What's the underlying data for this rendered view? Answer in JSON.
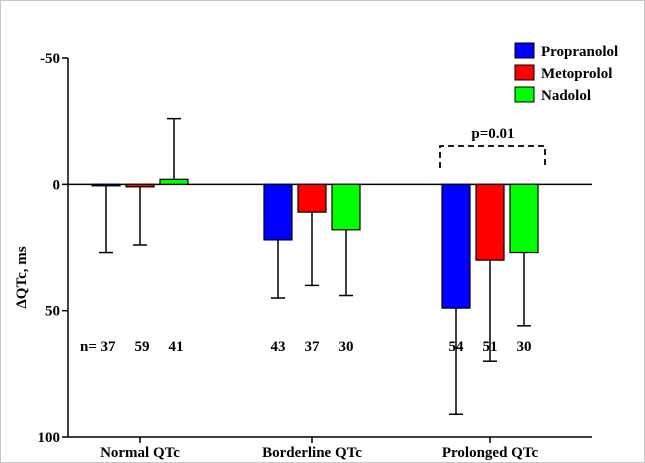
{
  "chart_data": {
    "type": "bar",
    "title": "",
    "xlabel": "",
    "ylabel": "ΔQTc, ms",
    "ylim": [
      -50,
      100
    ],
    "y_inverted": true,
    "yticks": [
      "-50",
      "0",
      "50",
      "100"
    ],
    "categories": [
      "Normal QTc",
      "Borderline QTc",
      "Prolonged QTc"
    ],
    "series": [
      {
        "name": "Propranolol",
        "color": "#0000ff",
        "values": [
          0,
          22,
          49
        ],
        "error": [
          27,
          23,
          42
        ]
      },
      {
        "name": "Metoprolol",
        "color": "#ff0000",
        "values": [
          1,
          11,
          30
        ],
        "error": [
          23,
          29,
          40
        ]
      },
      {
        "name": "Nadolol",
        "color": "#00ff00",
        "values": [
          -2,
          18,
          27
        ],
        "error": [
          24,
          26,
          29
        ]
      }
    ],
    "n_prefix": "n=",
    "n_values": [
      [
        "37",
        "59",
        "41"
      ],
      [
        "43",
        "37",
        "30"
      ],
      [
        "54",
        "51",
        "30"
      ]
    ],
    "n_row_y": 64,
    "legend_position": "top-right",
    "grid": false,
    "annotation": {
      "text": "p=0.01",
      "category": "Prolonged QTc",
      "style": "dashed-bracket"
    }
  }
}
